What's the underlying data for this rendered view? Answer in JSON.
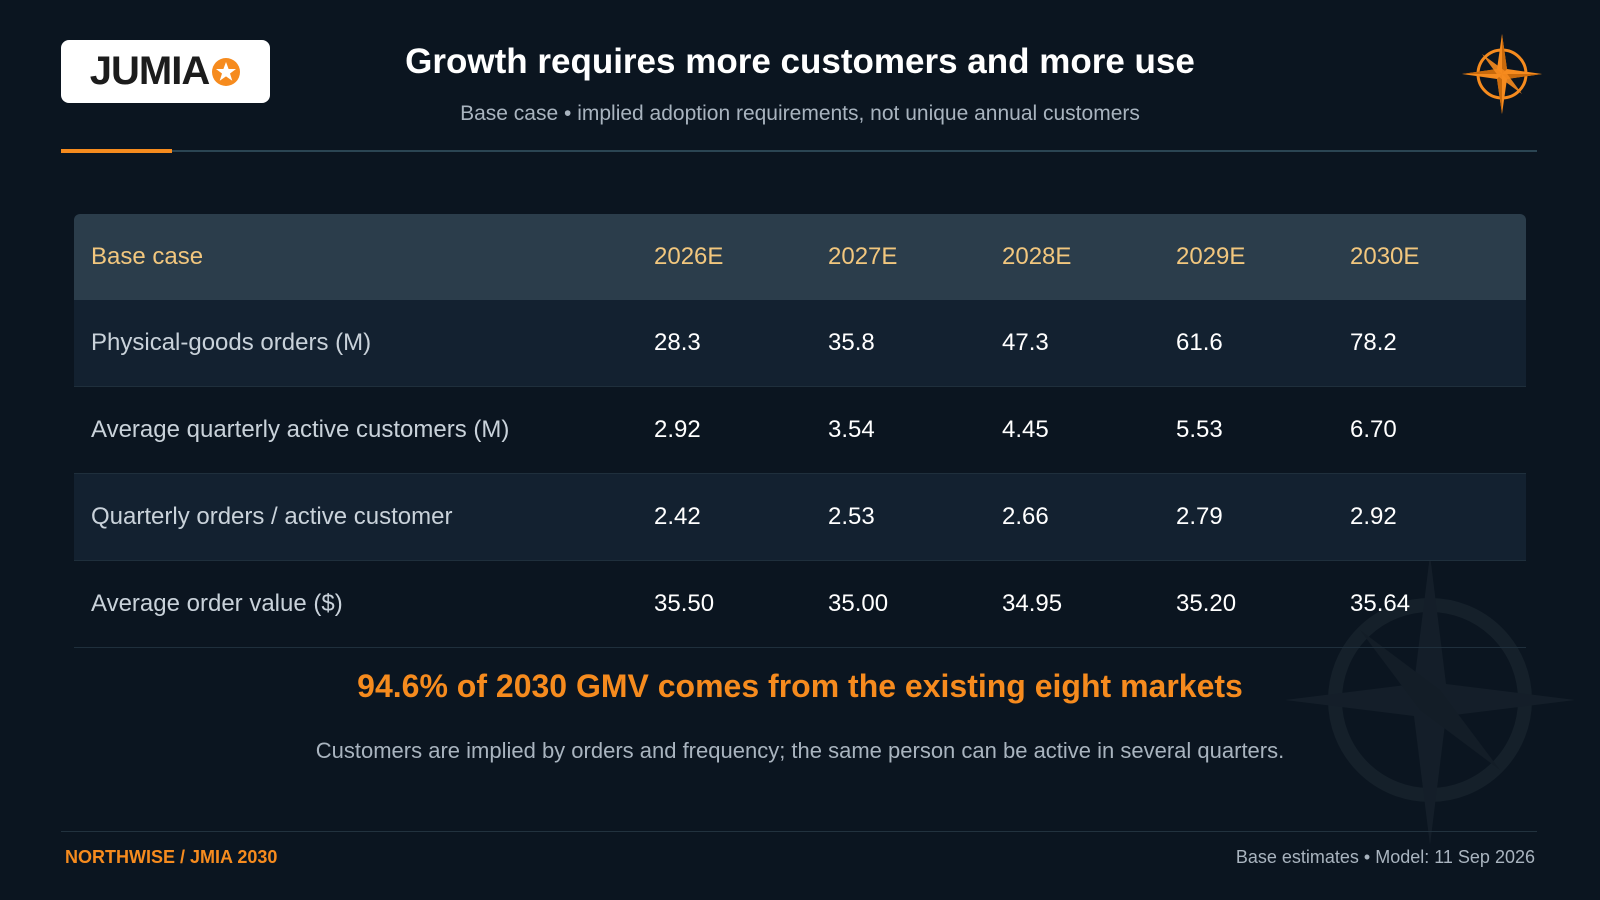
{
  "logo": {
    "text": "JUMIA",
    "accent_color": "#f68b1e"
  },
  "header": {
    "title": "Growth requires more customers and more use",
    "subtitle": "Base case • implied adoption requirements, not unique annual customers"
  },
  "table": {
    "columns": [
      "Base case",
      "2026E",
      "2027E",
      "2028E",
      "2029E",
      "2030E"
    ],
    "rows": [
      {
        "label": "Physical-goods orders (M)",
        "values": [
          "28.3",
          "35.8",
          "47.3",
          "61.6",
          "78.2"
        ]
      },
      {
        "label": "Average quarterly active customers (M)",
        "values": [
          "2.92",
          "3.54",
          "4.45",
          "5.53",
          "6.70"
        ]
      },
      {
        "label": "Quarterly orders / active customer",
        "values": [
          "2.42",
          "2.53",
          "2.66",
          "2.79",
          "2.92"
        ]
      },
      {
        "label": "Average order value ($)",
        "values": [
          "35.50",
          "35.00",
          "34.95",
          "35.20",
          "35.64"
        ]
      }
    ]
  },
  "callout": "94.6% of 2030 GMV comes from the existing eight markets",
  "note": "Customers are implied by orders and frequency; the same person can be active in several quarters.",
  "footer": {
    "left": "NORTHWISE / JMIA 2030",
    "right": "Base estimates • Model: 11 Sep 2026"
  },
  "colors": {
    "background": "#0b1520",
    "accent": "#f68b1e",
    "header_text": "#f2c77e"
  },
  "icons": [
    "star-icon",
    "compass-icon",
    "compass-watermark-icon"
  ]
}
